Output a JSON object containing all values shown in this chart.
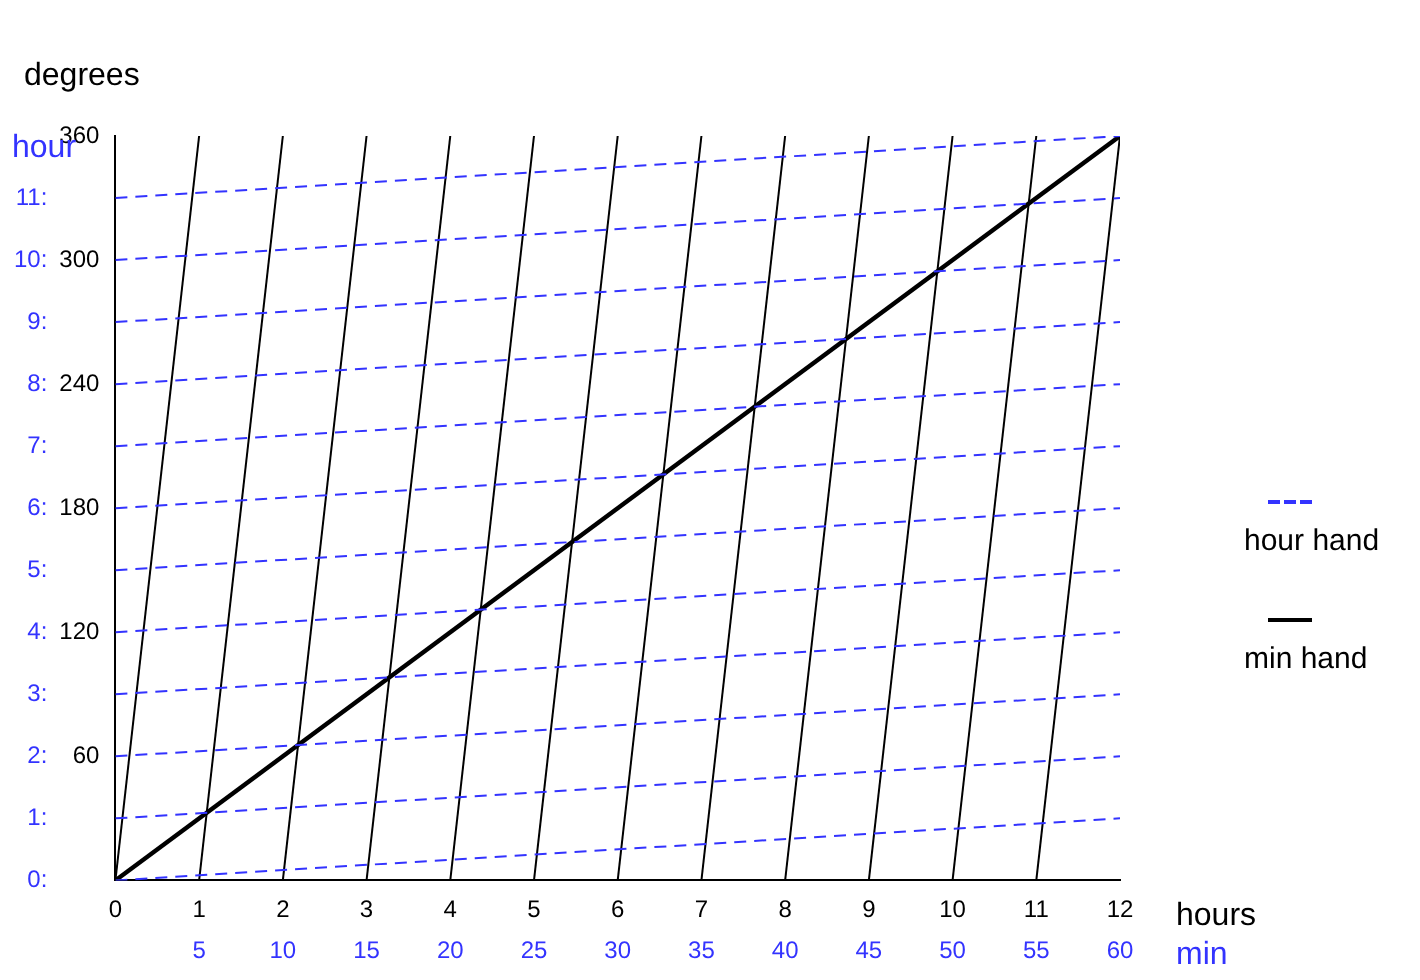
{
  "chart_data": {
    "type": "line",
    "xlabel": "hours",
    "x2label": "min",
    "ylabel": "degrees",
    "y2label": "hour",
    "xlim": [
      0,
      12
    ],
    "xticks": [
      0,
      1,
      2,
      3,
      4,
      5,
      6,
      7,
      8,
      9,
      10,
      11,
      12
    ],
    "x2lim": [
      0,
      60
    ],
    "x2ticks": [
      5,
      10,
      15,
      20,
      25,
      30,
      35,
      40,
      45,
      50,
      55,
      60
    ],
    "ylim": [
      0,
      360
    ],
    "yticks": [
      60,
      120,
      180,
      240,
      300,
      360
    ],
    "y2lim": [
      0,
      12
    ],
    "y2ticks": [
      {
        "value": 0,
        "label": "0:"
      },
      {
        "value": 1,
        "label": "1:"
      },
      {
        "value": 2,
        "label": "2:"
      },
      {
        "value": 3,
        "label": "3:"
      },
      {
        "value": 4,
        "label": "4:"
      },
      {
        "value": 5,
        "label": "5:"
      },
      {
        "value": 6,
        "label": "6:"
      },
      {
        "value": 7,
        "label": "7:"
      },
      {
        "value": 8,
        "label": "8:"
      },
      {
        "value": 9,
        "label": "9:"
      },
      {
        "value": 10,
        "label": "10:"
      },
      {
        "value": 11,
        "label": "11:"
      }
    ],
    "grid": false,
    "legend": "right",
    "marker": "none",
    "series": [
      {
        "name": "hour hand",
        "color": "#3333ff",
        "line_style": "dashed",
        "x": [
          0,
          12
        ],
        "values": [
          0,
          30
        ]
      },
      {
        "color": "#3333ff",
        "line_style": "dashed",
        "x": [
          0,
          12
        ],
        "values": [
          30,
          60
        ]
      },
      {
        "color": "#3333ff",
        "line_style": "dashed",
        "x": [
          0,
          12
        ],
        "values": [
          60,
          90
        ]
      },
      {
        "color": "#3333ff",
        "line_style": "dashed",
        "x": [
          0,
          12
        ],
        "values": [
          90,
          120
        ]
      },
      {
        "color": "#3333ff",
        "line_style": "dashed",
        "x": [
          0,
          12
        ],
        "values": [
          120,
          150
        ]
      },
      {
        "color": "#3333ff",
        "line_style": "dashed",
        "x": [
          0,
          12
        ],
        "values": [
          150,
          180
        ]
      },
      {
        "color": "#3333ff",
        "line_style": "dashed",
        "x": [
          0,
          12
        ],
        "values": [
          180,
          210
        ]
      },
      {
        "color": "#3333ff",
        "line_style": "dashed",
        "x": [
          0,
          12
        ],
        "values": [
          210,
          240
        ]
      },
      {
        "color": "#3333ff",
        "line_style": "dashed",
        "x": [
          0,
          12
        ],
        "values": [
          240,
          270
        ]
      },
      {
        "color": "#3333ff",
        "line_style": "dashed",
        "x": [
          0,
          12
        ],
        "values": [
          270,
          300
        ]
      },
      {
        "color": "#3333ff",
        "line_style": "dashed",
        "x": [
          0,
          12
        ],
        "values": [
          300,
          330
        ]
      },
      {
        "color": "#3333ff",
        "line_style": "dashed",
        "x": [
          0,
          12
        ],
        "values": [
          330,
          360
        ]
      },
      {
        "name": "min hand",
        "color": "#000000",
        "line_style": "solid",
        "x": [
          0,
          1
        ],
        "values": [
          0,
          360
        ]
      },
      {
        "color": "#000000",
        "line_style": "solid",
        "x": [
          1,
          2
        ],
        "values": [
          0,
          360
        ]
      },
      {
        "color": "#000000",
        "line_style": "solid",
        "x": [
          2,
          3
        ],
        "values": [
          0,
          360
        ]
      },
      {
        "color": "#000000",
        "line_style": "solid",
        "x": [
          3,
          4
        ],
        "values": [
          0,
          360
        ]
      },
      {
        "color": "#000000",
        "line_style": "solid",
        "x": [
          4,
          5
        ],
        "values": [
          0,
          360
        ]
      },
      {
        "color": "#000000",
        "line_style": "solid",
        "x": [
          5,
          6
        ],
        "values": [
          0,
          360
        ]
      },
      {
        "color": "#000000",
        "line_style": "solid",
        "x": [
          6,
          7
        ],
        "values": [
          0,
          360
        ]
      },
      {
        "color": "#000000",
        "line_style": "solid",
        "x": [
          7,
          8
        ],
        "values": [
          0,
          360
        ]
      },
      {
        "color": "#000000",
        "line_style": "solid",
        "x": [
          8,
          9
        ],
        "values": [
          0,
          360
        ]
      },
      {
        "color": "#000000",
        "line_style": "solid",
        "x": [
          9,
          10
        ],
        "values": [
          0,
          360
        ]
      },
      {
        "color": "#000000",
        "line_style": "solid",
        "x": [
          10,
          11
        ],
        "values": [
          0,
          360
        ]
      },
      {
        "color": "#000000",
        "line_style": "solid",
        "x": [
          11,
          12
        ],
        "values": [
          0,
          360
        ]
      },
      {
        "color": "#000000",
        "line_style": "solid",
        "x": [
          0,
          12
        ],
        "values": [
          0,
          360
        ]
      }
    ]
  }
}
